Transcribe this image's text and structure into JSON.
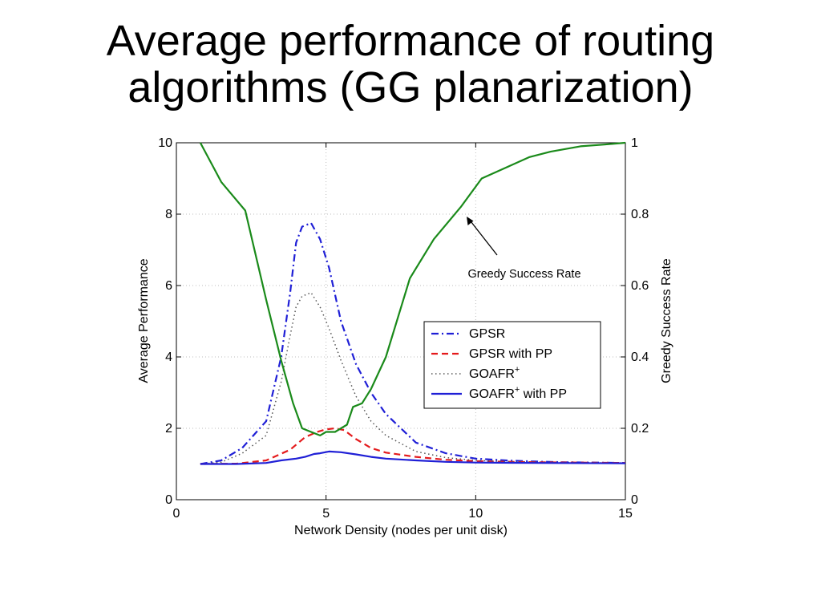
{
  "slide": {
    "title_line1": "Average performance of routing",
    "title_line2": "algorithms (GG planarization)"
  },
  "chart_data": {
    "type": "line",
    "xlabel": "Network Density (nodes per unit disk)",
    "ylabel": "Average Performance",
    "y2label": "Greedy Success Rate",
    "xlim": [
      0,
      15
    ],
    "ylim": [
      0,
      10
    ],
    "y2lim": [
      0,
      1
    ],
    "xticks": [
      "0",
      "5",
      "10",
      "15"
    ],
    "yticks": [
      "0",
      "2",
      "4",
      "6",
      "8",
      "10"
    ],
    "y2ticks": [
      "0",
      "0.2",
      "0.4",
      "0.6",
      "0.8",
      "1"
    ],
    "grid": true,
    "legend_position": "center-right",
    "annotation": {
      "text": "Greedy Success Rate"
    },
    "legend": [
      {
        "label": "GPSR"
      },
      {
        "label": "GPSR with PP"
      },
      {
        "label": "GOAFR",
        "sup": "+"
      },
      {
        "label": "GOAFR",
        "sup": "+",
        "suffix": " with PP"
      }
    ],
    "series": [
      {
        "color": "#1f1fd6",
        "axis": "left",
        "dash": "dashdot",
        "x": [
          0.8,
          1.5,
          2.2,
          3.0,
          3.5,
          3.8,
          4.0,
          4.2,
          4.5,
          4.8,
          5.1,
          5.5,
          6.0,
          6.5,
          7.0,
          8.0,
          9.0,
          10.0,
          11.0,
          12.0,
          13.0,
          14.0,
          15.0
        ],
        "y": [
          1.0,
          1.1,
          1.45,
          2.2,
          4.0,
          5.8,
          7.2,
          7.65,
          7.75,
          7.3,
          6.5,
          5.0,
          3.8,
          3.0,
          2.4,
          1.6,
          1.3,
          1.15,
          1.1,
          1.07,
          1.05,
          1.04,
          1.03
        ]
      },
      {
        "color": "#e41a1c",
        "axis": "left",
        "dash": "dashed",
        "x": [
          0.8,
          2.0,
          3.0,
          3.8,
          4.3,
          4.7,
          5.0,
          5.3,
          5.6,
          6.0,
          6.5,
          7.0,
          8.0,
          9.0,
          10.0,
          12.0,
          15.0
        ],
        "y": [
          1.0,
          1.01,
          1.1,
          1.4,
          1.75,
          1.9,
          1.97,
          2.0,
          1.95,
          1.7,
          1.45,
          1.32,
          1.2,
          1.12,
          1.08,
          1.05,
          1.03
        ]
      },
      {
        "color": "#555555",
        "axis": "left",
        "dash": "dotted",
        "x": [
          0.8,
          1.5,
          2.2,
          3.0,
          3.5,
          3.8,
          4.0,
          4.2,
          4.5,
          4.8,
          5.1,
          5.5,
          6.0,
          6.5,
          7.0,
          8.0,
          9.0,
          10.0,
          11.0,
          12.0,
          15.0
        ],
        "y": [
          1.0,
          1.05,
          1.3,
          1.8,
          3.3,
          4.6,
          5.4,
          5.7,
          5.8,
          5.4,
          4.8,
          3.9,
          2.9,
          2.2,
          1.8,
          1.35,
          1.18,
          1.1,
          1.07,
          1.05,
          1.03
        ]
      },
      {
        "color": "#1f1fd6",
        "axis": "left",
        "dash": "solid",
        "x": [
          0.8,
          2.0,
          3.0,
          3.5,
          4.0,
          4.3,
          4.6,
          4.8,
          5.1,
          5.5,
          6.0,
          6.5,
          7.0,
          8.0,
          9.0,
          10.0,
          12.0,
          15.0
        ],
        "y": [
          1.0,
          1.0,
          1.03,
          1.1,
          1.15,
          1.2,
          1.28,
          1.3,
          1.35,
          1.33,
          1.27,
          1.2,
          1.15,
          1.1,
          1.06,
          1.04,
          1.03,
          1.02
        ]
      },
      {
        "color": "#1a8a1a",
        "axis": "right",
        "dash": "solid",
        "x": [
          0.8,
          1.5,
          2.3,
          3.0,
          3.5,
          3.9,
          4.2,
          4.5,
          4.8,
          5.0,
          5.3,
          5.5,
          5.7,
          5.9,
          6.2,
          6.5,
          7.0,
          7.8,
          8.6,
          9.5,
          10.2,
          11.0,
          11.8,
          12.5,
          13.5,
          14.3,
          15.0
        ],
        "y": [
          1.0,
          0.89,
          0.81,
          0.56,
          0.39,
          0.27,
          0.2,
          0.19,
          0.18,
          0.19,
          0.19,
          0.2,
          0.21,
          0.26,
          0.27,
          0.31,
          0.4,
          0.62,
          0.73,
          0.82,
          0.9,
          0.93,
          0.96,
          0.975,
          0.99,
          0.995,
          1.0
        ]
      }
    ]
  }
}
